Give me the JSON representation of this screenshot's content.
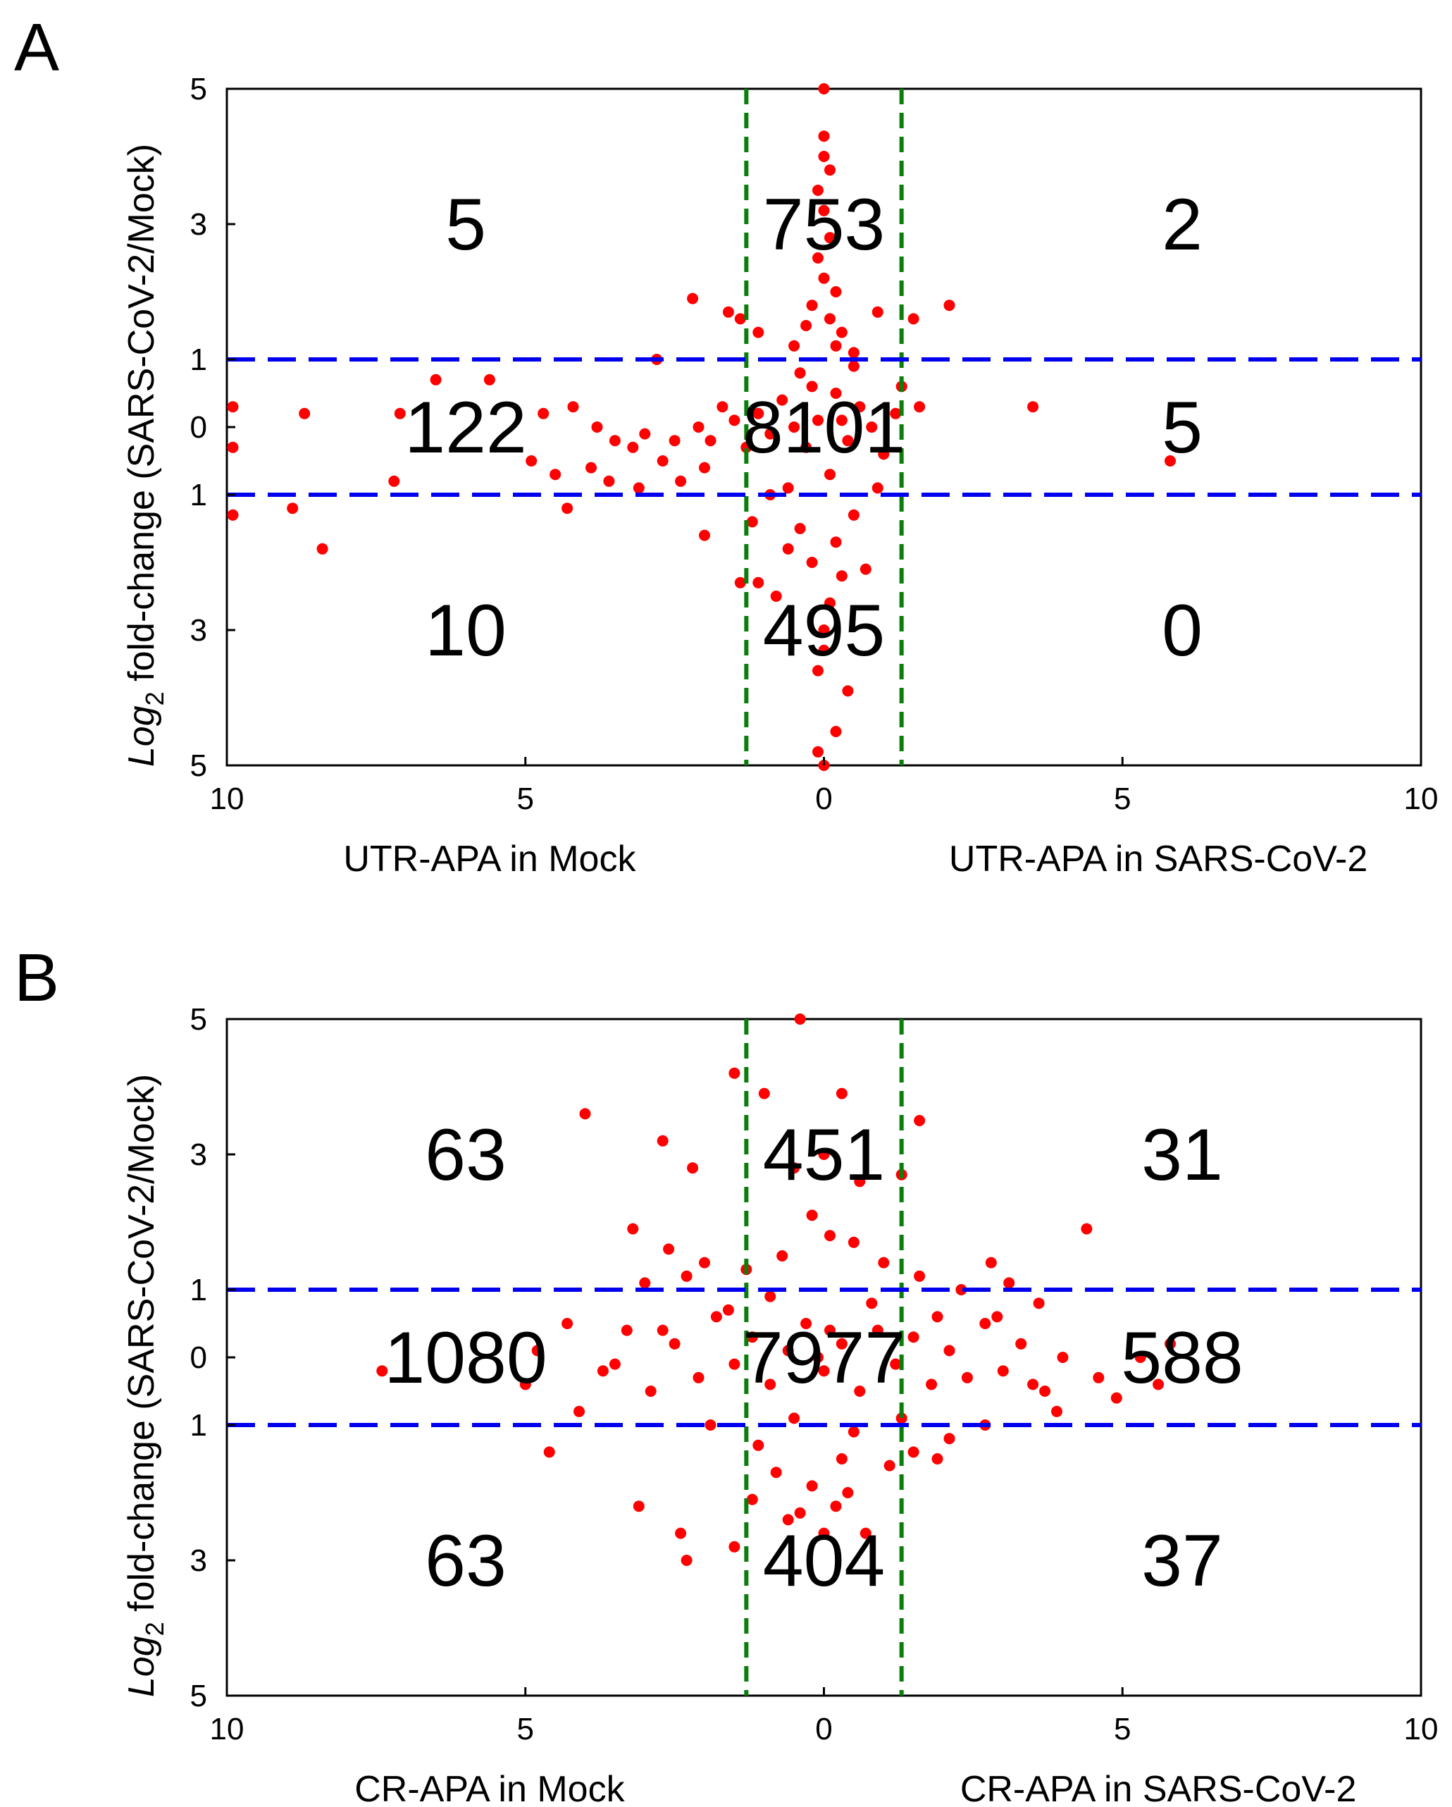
{
  "figure": {
    "panels": [
      "A",
      "B"
    ]
  },
  "chart_data": [
    {
      "panel": "A",
      "type": "scatter",
      "title": "",
      "ylabel_prefix": "Log",
      "ylabel_subscript": "2",
      "ylabel_suffix": " fold-change (SARS-CoV-2/Mock)",
      "xlabel_left": "UTR-APA in Mock",
      "xlabel_right": "UTR-APA in SARS-CoV-2",
      "xlim": [
        -10,
        10
      ],
      "ylim": [
        -5,
        5
      ],
      "x_ticks": [
        -10,
        -5,
        0,
        5,
        10
      ],
      "x_tick_labels": [
        "10",
        "5",
        "0",
        "5",
        "10"
      ],
      "y_ticks": [
        5,
        3,
        1,
        0,
        -1,
        -3,
        -5
      ],
      "y_tick_labels": [
        "5",
        "3",
        "1",
        "0",
        "1",
        "3",
        "5"
      ],
      "thresholds": {
        "x": [
          -1.3,
          1.3
        ],
        "y": [
          -1,
          1
        ]
      },
      "colors": {
        "points": "#ff0000",
        "vline": "#0a7d0a",
        "hline": "#0000ee"
      },
      "quadrant_counts": [
        {
          "x": -6,
          "y": 3,
          "label": "5"
        },
        {
          "x": 0,
          "y": 3,
          "label": "753"
        },
        {
          "x": 6,
          "y": 3,
          "label": "2"
        },
        {
          "x": -6,
          "y": 0,
          "label": "122"
        },
        {
          "x": 0,
          "y": 0,
          "label": "8101"
        },
        {
          "x": 6,
          "y": 0,
          "label": "5"
        },
        {
          "x": -6,
          "y": -3,
          "label": "10"
        },
        {
          "x": 0,
          "y": -3,
          "label": "495"
        },
        {
          "x": 6,
          "y": -3,
          "label": "0"
        }
      ],
      "points": [
        [
          0.0,
          5.0
        ],
        [
          0.0,
          4.3
        ],
        [
          0.0,
          4.0
        ],
        [
          0.1,
          3.8
        ],
        [
          -0.1,
          3.5
        ],
        [
          0.0,
          3.2
        ],
        [
          0.1,
          2.8
        ],
        [
          -0.1,
          2.5
        ],
        [
          0.0,
          2.2
        ],
        [
          0.2,
          2.0
        ],
        [
          -0.2,
          1.8
        ],
        [
          0.1,
          1.6
        ],
        [
          -0.3,
          1.5
        ],
        [
          0.3,
          1.4
        ],
        [
          0.2,
          1.2
        ],
        [
          -0.5,
          1.2
        ],
        [
          0.5,
          1.1
        ],
        [
          -2.2,
          1.9
        ],
        [
          -1.6,
          1.7
        ],
        [
          -1.4,
          1.6
        ],
        [
          1.5,
          1.6
        ],
        [
          2.1,
          1.8
        ],
        [
          0.9,
          1.7
        ],
        [
          -1.1,
          1.4
        ],
        [
          -2.8,
          1.0
        ],
        [
          -5.6,
          0.7
        ],
        [
          -6.5,
          0.7
        ],
        [
          -8.7,
          0.2
        ],
        [
          -7.1,
          0.2
        ],
        [
          -4.7,
          0.2
        ],
        [
          -4.2,
          0.3
        ],
        [
          -3.8,
          0.0
        ],
        [
          -3.5,
          -0.2
        ],
        [
          -3.2,
          -0.3
        ],
        [
          -3.0,
          -0.1
        ],
        [
          -2.7,
          -0.5
        ],
        [
          -2.5,
          -0.2
        ],
        [
          -2.1,
          0.0
        ],
        [
          -1.9,
          -0.2
        ],
        [
          -1.7,
          0.3
        ],
        [
          -1.5,
          0.1
        ],
        [
          -1.3,
          -0.3
        ],
        [
          -1.1,
          0.2
        ],
        [
          -0.9,
          -0.1
        ],
        [
          -0.7,
          0.4
        ],
        [
          -0.5,
          0.0
        ],
        [
          -0.3,
          -0.3
        ],
        [
          -0.1,
          0.1
        ],
        [
          0.2,
          0.5
        ],
        [
          0.4,
          -0.2
        ],
        [
          0.6,
          0.3
        ],
        [
          0.8,
          0.0
        ],
        [
          1.0,
          -0.4
        ],
        [
          1.2,
          0.2
        ],
        [
          1.6,
          0.3
        ],
        [
          1.3,
          0.6
        ],
        [
          -4.5,
          -0.7
        ],
        [
          -4.9,
          -0.5
        ],
        [
          -4.3,
          -1.2
        ],
        [
          -3.9,
          -0.6
        ],
        [
          -3.6,
          -0.8
        ],
        [
          -3.1,
          -0.9
        ],
        [
          -2.4,
          -0.8
        ],
        [
          -2.0,
          -0.6
        ],
        [
          -7.2,
          -0.8
        ],
        [
          -8.9,
          -1.2
        ],
        [
          -8.4,
          -1.8
        ],
        [
          -9.9,
          -1.3
        ],
        [
          -9.9,
          0.3
        ],
        [
          -9.9,
          -0.3
        ],
        [
          3.5,
          0.3
        ],
        [
          5.8,
          -0.5
        ],
        [
          -2.0,
          -1.6
        ],
        [
          -1.2,
          -1.4
        ],
        [
          -1.4,
          -2.3
        ],
        [
          -0.6,
          -1.8
        ],
        [
          -0.4,
          -1.5
        ],
        [
          -0.2,
          -2.0
        ],
        [
          0.2,
          -1.7
        ],
        [
          0.5,
          -1.3
        ],
        [
          0.3,
          -2.2
        ],
        [
          0.1,
          -2.6
        ],
        [
          0.0,
          -3.0
        ],
        [
          0.0,
          -3.3
        ],
        [
          -0.1,
          -3.6
        ],
        [
          0.4,
          -3.9
        ],
        [
          0.2,
          -4.5
        ],
        [
          -0.1,
          -4.8
        ],
        [
          0.0,
          -5.0
        ],
        [
          -1.1,
          -2.3
        ],
        [
          -0.8,
          -2.5
        ],
        [
          0.7,
          -2.1
        ],
        [
          -0.9,
          -1.0
        ],
        [
          0.9,
          -0.9
        ],
        [
          -0.4,
          0.8
        ],
        [
          0.5,
          0.9
        ],
        [
          -0.6,
          -0.9
        ],
        [
          0.3,
          0.1
        ],
        [
          -0.2,
          0.6
        ],
        [
          0.1,
          -0.7
        ]
      ]
    },
    {
      "panel": "B",
      "type": "scatter",
      "title": "",
      "ylabel_prefix": "Log",
      "ylabel_subscript": "2",
      "ylabel_suffix": " fold-change (SARS-CoV-2/Mock)",
      "xlabel_left": "CR-APA in Mock",
      "xlabel_right": "CR-APA in SARS-CoV-2",
      "xlim": [
        -10,
        10
      ],
      "ylim": [
        -5,
        5
      ],
      "x_ticks": [
        -10,
        -5,
        0,
        5,
        10
      ],
      "x_tick_labels": [
        "10",
        "5",
        "0",
        "5",
        "10"
      ],
      "y_ticks": [
        5,
        3,
        1,
        0,
        -1,
        -3,
        -5
      ],
      "y_tick_labels": [
        "5",
        "3",
        "1",
        "0",
        "1",
        "3",
        "5"
      ],
      "thresholds": {
        "x": [
          -1.3,
          1.3
        ],
        "y": [
          -1,
          1
        ]
      },
      "colors": {
        "points": "#ff0000",
        "vline": "#0a7d0a",
        "hline": "#0000ee"
      },
      "quadrant_counts": [
        {
          "x": -6,
          "y": 3,
          "label": "63"
        },
        {
          "x": 0,
          "y": 3,
          "label": "451"
        },
        {
          "x": 6,
          "y": 3,
          "label": "31"
        },
        {
          "x": -6,
          "y": 0,
          "label": "1080"
        },
        {
          "x": 0,
          "y": 0,
          "label": "7977"
        },
        {
          "x": 6,
          "y": 0,
          "label": "588"
        },
        {
          "x": -6,
          "y": -3,
          "label": "63"
        },
        {
          "x": 0,
          "y": -3,
          "label": "404"
        },
        {
          "x": 6,
          "y": -3,
          "label": "37"
        }
      ],
      "points": [
        [
          -0.4,
          5.0
        ],
        [
          -1.5,
          4.2
        ],
        [
          -1.0,
          3.9
        ],
        [
          0.3,
          3.9
        ],
        [
          1.6,
          3.5
        ],
        [
          -4.0,
          3.6
        ],
        [
          -2.7,
          3.2
        ],
        [
          -2.2,
          2.8
        ],
        [
          0.0,
          3.0
        ],
        [
          -0.5,
          2.8
        ],
        [
          0.6,
          2.6
        ],
        [
          1.3,
          2.7
        ],
        [
          4.4,
          1.9
        ],
        [
          -3.2,
          1.9
        ],
        [
          -2.6,
          1.6
        ],
        [
          -2.0,
          1.4
        ],
        [
          -3.0,
          1.1
        ],
        [
          2.8,
          1.4
        ],
        [
          3.1,
          1.1
        ],
        [
          3.6,
          0.8
        ],
        [
          -4.3,
          0.5
        ],
        [
          -4.8,
          0.1
        ],
        [
          -7.4,
          -0.2
        ],
        [
          -5.0,
          -0.4
        ],
        [
          -4.1,
          -0.8
        ],
        [
          -3.7,
          -0.2
        ],
        [
          -3.3,
          0.4
        ],
        [
          -2.9,
          -0.5
        ],
        [
          -2.5,
          0.2
        ],
        [
          -2.1,
          -0.3
        ],
        [
          -1.8,
          0.6
        ],
        [
          -1.5,
          -0.1
        ],
        [
          -1.2,
          0.3
        ],
        [
          -0.9,
          -0.4
        ],
        [
          -0.6,
          0.1
        ],
        [
          -0.3,
          0.5
        ],
        [
          0.0,
          -0.2
        ],
        [
          0.3,
          0.2
        ],
        [
          0.6,
          -0.5
        ],
        [
          0.9,
          0.4
        ],
        [
          1.2,
          -0.1
        ],
        [
          1.5,
          0.3
        ],
        [
          1.8,
          -0.4
        ],
        [
          2.1,
          0.1
        ],
        [
          2.4,
          -0.3
        ],
        [
          2.7,
          0.5
        ],
        [
          3.0,
          -0.2
        ],
        [
          3.3,
          0.2
        ],
        [
          3.7,
          -0.5
        ],
        [
          4.0,
          0.0
        ],
        [
          4.6,
          -0.3
        ],
        [
          5.3,
          0.0
        ],
        [
          5.6,
          -0.4
        ],
        [
          5.8,
          0.2
        ],
        [
          4.9,
          -0.6
        ],
        [
          3.9,
          -0.8
        ],
        [
          -4.6,
          -1.4
        ],
        [
          -3.1,
          -2.2
        ],
        [
          -2.4,
          -2.6
        ],
        [
          -2.3,
          -3.0
        ],
        [
          -1.5,
          -2.8
        ],
        [
          -1.2,
          -2.1
        ],
        [
          -0.8,
          -1.7
        ],
        [
          -0.4,
          -2.3
        ],
        [
          0.0,
          -2.6
        ],
        [
          0.4,
          -2.0
        ],
        [
          0.7,
          -2.6
        ],
        [
          1.1,
          -1.6
        ],
        [
          1.5,
          -1.4
        ],
        [
          2.1,
          -1.2
        ],
        [
          2.7,
          -1.0
        ],
        [
          0.1,
          1.8
        ],
        [
          -0.2,
          2.1
        ],
        [
          0.5,
          1.7
        ],
        [
          -0.7,
          1.5
        ],
        [
          1.0,
          1.4
        ],
        [
          -1.3,
          1.3
        ],
        [
          1.6,
          1.2
        ],
        [
          -2.3,
          1.2
        ],
        [
          2.3,
          1.0
        ],
        [
          -0.9,
          0.9
        ],
        [
          0.8,
          0.8
        ],
        [
          -1.6,
          0.7
        ],
        [
          1.9,
          0.6
        ],
        [
          -2.7,
          0.4
        ],
        [
          2.9,
          0.6
        ],
        [
          -3.5,
          -0.1
        ],
        [
          3.5,
          -0.4
        ],
        [
          -0.5,
          -0.9
        ],
        [
          0.5,
          -1.1
        ],
        [
          -1.1,
          -1.3
        ],
        [
          1.3,
          -0.9
        ],
        [
          -1.9,
          -1.0
        ],
        [
          1.9,
          -1.5
        ],
        [
          -0.2,
          -1.9
        ],
        [
          0.2,
          -2.2
        ],
        [
          -0.6,
          -2.4
        ],
        [
          0.3,
          -1.5
        ],
        [
          -0.1,
          0.0
        ],
        [
          0.1,
          0.4
        ]
      ]
    }
  ]
}
